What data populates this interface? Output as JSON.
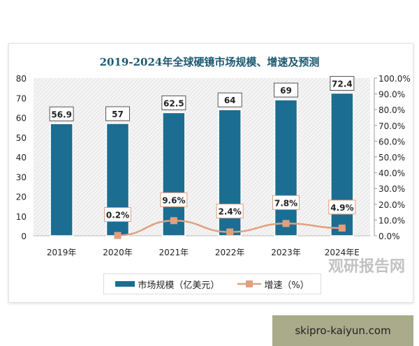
{
  "chart_data": {
    "type": "bar+line",
    "title": "2019-2024年全球硬镜市场规模、增速及预测",
    "categories": [
      "2019年",
      "2020年",
      "2021年",
      "2022年",
      "2023年",
      "2024年E"
    ],
    "series": [
      {
        "name": "市场规模（亿美元）",
        "type": "bar",
        "axis": "left",
        "values": [
          56.9,
          57,
          62.5,
          64,
          69,
          72.4
        ],
        "labels": [
          "56.9",
          "57",
          "62.5",
          "64",
          "69",
          "72.4"
        ],
        "color": "#1b6e91"
      },
      {
        "name": "增速（%）",
        "type": "line",
        "axis": "right",
        "values": [
          null,
          0.2,
          9.6,
          2.4,
          7.8,
          4.9
        ],
        "labels": [
          "",
          "0.2%",
          "9.6%",
          "2.4%",
          "7.8%",
          "4.9%"
        ],
        "color": "#e0a080"
      }
    ],
    "left_axis": {
      "ylim": [
        0,
        80
      ],
      "ticks": [
        "0",
        "10",
        "20",
        "30",
        "40",
        "50",
        "60",
        "70",
        "80"
      ]
    },
    "right_axis": {
      "ylim": [
        0,
        100
      ],
      "ticks": [
        "0.0%",
        "10.0%",
        "20.0%",
        "30.0%",
        "40.0%",
        "50.0%",
        "60.0%",
        "70.0%",
        "80.0%",
        "90.0%",
        "100.0%"
      ]
    },
    "legend": "bottom",
    "grid": false
  },
  "watermark": "观研报告网",
  "footer": "skipro-kaiyun.com"
}
